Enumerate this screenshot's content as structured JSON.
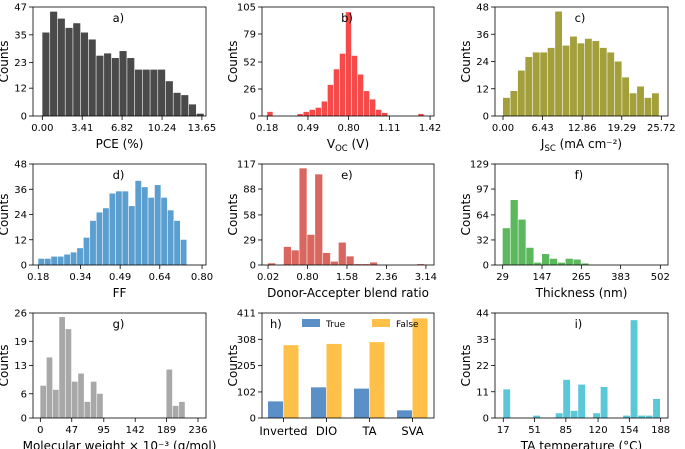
{
  "chart_data": [
    {
      "panel": "a)",
      "type": "bar",
      "color": "#4a4a4a",
      "xlabel": "PCE (%)",
      "ylabel": "Counts",
      "xlim": [
        -0.8,
        14.0
      ],
      "ylim": [
        0,
        47
      ],
      "xticks": [
        0.0,
        3.41,
        6.82,
        10.24,
        13.65
      ],
      "xtick_labels": [
        "0.00",
        "3.41",
        "6.82",
        "10.24",
        "13.65"
      ],
      "yticks": [
        0,
        12,
        23,
        35,
        47
      ],
      "bin_width": 0.66,
      "bins": [
        0.0,
        0.66,
        1.32,
        1.98,
        2.64,
        3.3,
        3.96,
        4.62,
        5.28,
        5.94,
        6.6,
        7.26,
        7.92,
        8.58,
        9.24,
        9.9,
        10.56,
        11.22,
        11.88,
        12.54,
        13.2
      ],
      "values": [
        36,
        45,
        42,
        38,
        40,
        36,
        33,
        26,
        27,
        25,
        28,
        25,
        20,
        20,
        20,
        20,
        15,
        10,
        9,
        5,
        1
      ]
    },
    {
      "panel": "b)",
      "type": "bar",
      "color": "#f44a4a",
      "xlabel": "V",
      "xlabel_sub": "OC",
      "xlabel_tail": " (V)",
      "ylabel": "Counts",
      "xlim": [
        0.14,
        1.45
      ],
      "ylim": [
        0,
        105
      ],
      "xticks": [
        0.18,
        0.49,
        0.8,
        1.11,
        1.42
      ],
      "xtick_labels": [
        "0.18",
        "0.49",
        "0.80",
        "1.11",
        "1.42"
      ],
      "yticks": [
        0,
        26,
        52,
        79,
        105
      ],
      "bin_width": 0.046,
      "bins": [
        0.18,
        0.226,
        0.272,
        0.318,
        0.364,
        0.41,
        0.456,
        0.502,
        0.548,
        0.594,
        0.64,
        0.686,
        0.732,
        0.778,
        0.824,
        0.87,
        0.916,
        0.962,
        1.008,
        1.054,
        1.1,
        1.146,
        1.192,
        1.238,
        1.284,
        1.33,
        1.376
      ],
      "values": [
        4,
        0,
        0,
        0,
        0,
        2,
        4,
        6,
        8,
        14,
        30,
        45,
        60,
        100,
        58,
        40,
        24,
        16,
        6,
        3,
        0,
        0,
        0,
        0,
        0,
        2,
        0
      ]
    },
    {
      "panel": "c)",
      "type": "bar",
      "color": "#a39f3b",
      "xlabel": "J",
      "xlabel_sub": "SC",
      "xlabel_tail": " (mA cm⁻²)",
      "ylabel": "Counts",
      "xlim": [
        -1.3,
        26.8
      ],
      "ylim": [
        0,
        48
      ],
      "xticks": [
        0.0,
        6.43,
        12.86,
        19.29,
        25.72
      ],
      "xtick_labels": [
        "0.00",
        "6.43",
        "12.86",
        "19.29",
        "25.72"
      ],
      "yticks": [
        0,
        12,
        24,
        36,
        48
      ],
      "bin_width": 1.21,
      "bins": [
        0.0,
        1.21,
        2.42,
        3.63,
        4.84,
        6.05,
        7.26,
        8.47,
        9.68,
        10.89,
        12.1,
        13.31,
        14.52,
        15.73,
        16.94,
        18.15,
        19.36,
        20.57,
        21.78,
        22.99,
        24.2
      ],
      "values": [
        8,
        11,
        20,
        26,
        28,
        28,
        30,
        46,
        31,
        35,
        32,
        34,
        33,
        30,
        28,
        24,
        17,
        10,
        13,
        8,
        10
      ]
    },
    {
      "panel": "d)",
      "type": "bar",
      "color": "#5a9fd0",
      "xlabel": "FF",
      "ylabel": "Counts",
      "xlim": [
        0.16,
        0.815
      ],
      "ylim": [
        0,
        48
      ],
      "xticks": [
        0.18,
        0.34,
        0.49,
        0.64,
        0.8
      ],
      "xtick_labels": [
        "0.18",
        "0.34",
        "0.49",
        "0.64",
        "0.80"
      ],
      "yticks": [
        0,
        12,
        24,
        36,
        48
      ],
      "bin_width": 0.0245,
      "bins": [
        0.18,
        0.2045,
        0.229,
        0.2535,
        0.278,
        0.3025,
        0.327,
        0.3515,
        0.376,
        0.4005,
        0.425,
        0.4495,
        0.474,
        0.4985,
        0.523,
        0.5475,
        0.572,
        0.5965,
        0.621,
        0.6455,
        0.67,
        0.6945,
        0.719
      ],
      "values": [
        3,
        3,
        4,
        4,
        5,
        6,
        8,
        13,
        21,
        25,
        27,
        34,
        35,
        35,
        28,
        40,
        37,
        32,
        38,
        32,
        26,
        21,
        12
      ]
    },
    {
      "panel": "e)",
      "type": "bar",
      "color": "#d9675f",
      "xlabel": "Donor-Accepter blend ratio",
      "ylabel": "Counts",
      "xlim": [
        -0.1,
        3.3
      ],
      "ylim": [
        0,
        117
      ],
      "xticks": [
        0.02,
        0.8,
        1.58,
        2.36,
        3.14
      ],
      "xtick_labels": [
        "0.02",
        "0.80",
        "1.58",
        "2.36",
        "3.14"
      ],
      "yticks": [
        0,
        29,
        58,
        88,
        117
      ],
      "bin_width": 0.155,
      "bins": [
        0.02,
        0.175,
        0.33,
        0.485,
        0.64,
        0.795,
        0.95,
        1.105,
        1.26,
        1.415,
        1.57,
        1.725,
        1.88,
        2.035,
        2.19,
        2.345,
        2.5,
        2.655,
        2.81,
        2.965
      ],
      "values": [
        2,
        0,
        21,
        17,
        112,
        35,
        105,
        14,
        4,
        26,
        10,
        1,
        1,
        3,
        0,
        0,
        0,
        0,
        0,
        1
      ]
    },
    {
      "panel": "f)",
      "type": "bar",
      "color": "#5cb85c",
      "xlabel": "Thickness (nm)",
      "ylabel": "Counts",
      "xlim": [
        6,
        525
      ],
      "ylim": [
        0,
        129
      ],
      "xticks": [
        29,
        147,
        265,
        383,
        502
      ],
      "xtick_labels": [
        "29",
        "147",
        "265",
        "383",
        "502"
      ],
      "yticks": [
        0,
        32,
        64,
        97,
        129
      ],
      "bin_width": 23.6,
      "bins": [
        29,
        52.6,
        76.2,
        99.8,
        123.4,
        147.0,
        170.6,
        194.2,
        217.8,
        241.4,
        265.0,
        288.6,
        312.2,
        335.8,
        359.4,
        383.0,
        406.6,
        430.2,
        453.8,
        477.4
      ],
      "values": [
        47,
        83,
        58,
        22,
        3,
        14,
        8,
        3,
        8,
        7,
        2,
        0,
        0,
        0,
        0,
        0,
        0,
        0,
        0,
        0
      ]
    },
    {
      "panel": "g)",
      "type": "bar",
      "color": "#a8a8a8",
      "xlabel": "Molecular weight × 10⁻³ (g/mol)",
      "ylabel": "Counts",
      "xlim": [
        -11,
        248
      ],
      "ylim": [
        0,
        26
      ],
      "xticks": [
        0,
        47,
        95,
        142,
        189,
        236
      ],
      "xtick_labels": [
        "0",
        "47",
        "95",
        "142",
        "189",
        "236"
      ],
      "yticks": [
        0,
        6,
        13,
        19,
        26
      ],
      "bin_width": 9.44,
      "bins": [
        0,
        9.44,
        18.88,
        28.32,
        37.76,
        47.2,
        56.64,
        66.08,
        75.52,
        84.96,
        94.4,
        103.84,
        113.28,
        122.72,
        132.16,
        141.6,
        151.04,
        160.48,
        169.92,
        179.36,
        188.8,
        198.24,
        207.68
      ],
      "values": [
        8,
        15,
        7,
        25,
        22,
        9,
        11,
        4,
        9,
        6,
        0,
        0,
        0,
        0,
        0,
        0,
        0,
        0,
        0,
        0,
        12,
        3,
        4
      ]
    },
    {
      "panel": "h)",
      "type": "bar",
      "grouped": true,
      "xlabel": "",
      "ylabel": "Counts",
      "ylim": [
        0,
        411
      ],
      "yticks": [
        0,
        102,
        205,
        308,
        411
      ],
      "categories": [
        "Inverted",
        "DIO",
        "TA",
        "SVA"
      ],
      "series": [
        {
          "name": "True",
          "color": "#5a8fc7",
          "values": [
            65,
            120,
            115,
            30
          ]
        },
        {
          "name": "False",
          "color": "#ffc04a",
          "values": [
            285,
            290,
            297,
            390
          ]
        }
      ]
    },
    {
      "panel": "i)",
      "type": "bar",
      "color": "#5bc8d8",
      "xlabel": "TA temperature (°C)",
      "ylabel": "Counts",
      "xlim": [
        8,
        196
      ],
      "ylim": [
        0,
        44
      ],
      "xticks": [
        17,
        51,
        85,
        120,
        154,
        188
      ],
      "xtick_labels": [
        "17",
        "51",
        "85",
        "120",
        "154",
        "188"
      ],
      "yticks": [
        0,
        11,
        22,
        33,
        44
      ],
      "bin_width": 8.14,
      "bins": [
        17,
        25.14,
        33.28,
        41.42,
        49.56,
        57.7,
        65.84,
        73.98,
        82.12,
        90.26,
        98.4,
        106.54,
        114.68,
        122.82,
        130.96,
        139.1,
        147.24,
        155.38,
        163.52,
        171.66,
        179.8
      ],
      "values": [
        12,
        0,
        0,
        0,
        1,
        0,
        0,
        2,
        16,
        3,
        14,
        0,
        2,
        13,
        0,
        0,
        1,
        41,
        1,
        1,
        8
      ]
    }
  ]
}
